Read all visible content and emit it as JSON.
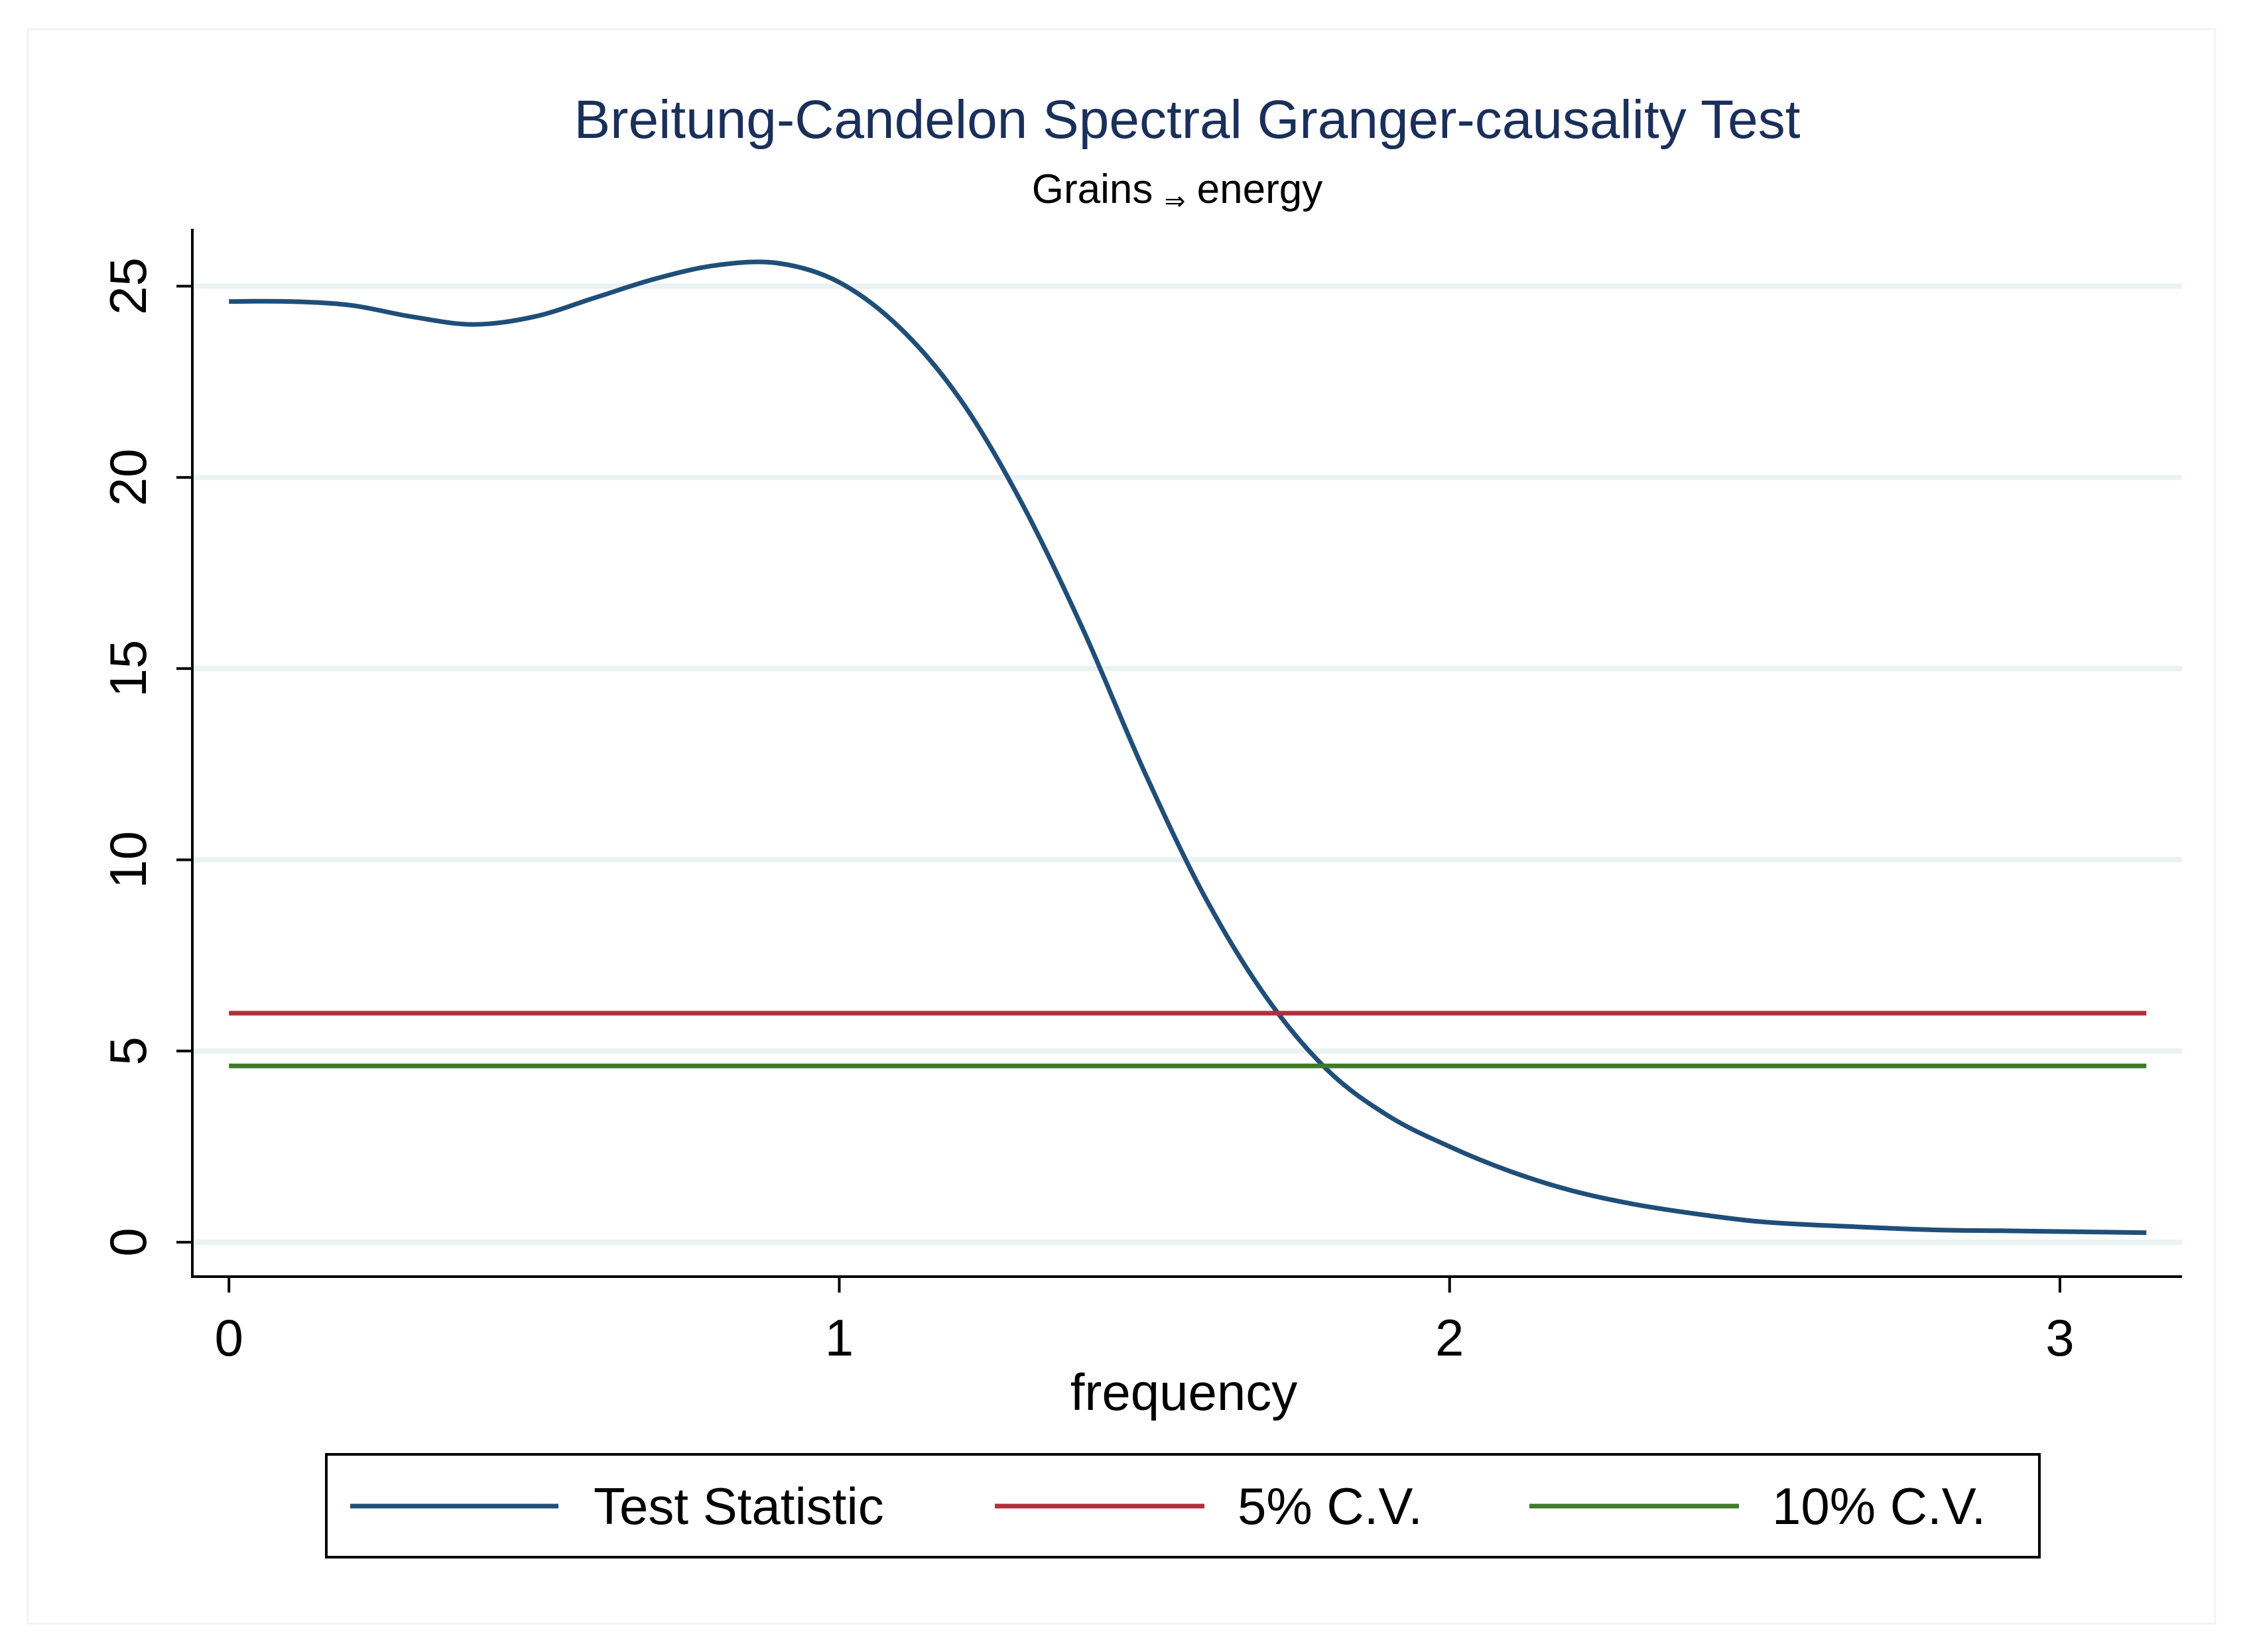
{
  "chart_data": {
    "type": "line",
    "title": "Breitung-Candelon Spectral Granger-causality Test",
    "subtitle_left": "Grains",
    "subtitle_arrow": "⇒",
    "subtitle_right": "energy",
    "xlabel": "frequency",
    "ylabel": "",
    "xlim": [
      -0.06,
      3.2
    ],
    "ylim": [
      -0.9,
      26.5
    ],
    "xticks": [
      0,
      1,
      2,
      3
    ],
    "xtick_labels": [
      "0",
      "1",
      "2",
      "3"
    ],
    "yticks": [
      0,
      5,
      10,
      15,
      20,
      25
    ],
    "ytick_labels": [
      "0",
      "5",
      "10",
      "15",
      "20",
      "25"
    ],
    "grid": true,
    "legend_position": "bottom",
    "colors": {
      "title": "#1a2f5a",
      "test_statistic": "#1f4e79",
      "cv5": "#b0303a",
      "cv10": "#3e7a2a",
      "grid": "#eaf2f3",
      "axis": "#000000"
    },
    "series": [
      {
        "name": "Test Statistic",
        "x": [
          0.0,
          0.1,
          0.2,
          0.3,
          0.4,
          0.5,
          0.6,
          0.7,
          0.8,
          0.9,
          1.0,
          1.1,
          1.2,
          1.3,
          1.4,
          1.5,
          1.6,
          1.7,
          1.8,
          1.9,
          2.0,
          2.1,
          2.2,
          2.3,
          2.4,
          2.5,
          2.6,
          2.7,
          2.8,
          2.9,
          3.0,
          3.1416
        ],
        "values": [
          24.6,
          24.6,
          24.5,
          24.2,
          24.0,
          24.2,
          24.7,
          25.2,
          25.55,
          25.6,
          25.1,
          23.9,
          22.0,
          19.3,
          16.0,
          12.3,
          9.0,
          6.4,
          4.5,
          3.3,
          2.5,
          1.85,
          1.35,
          1.0,
          0.75,
          0.55,
          0.45,
          0.38,
          0.32,
          0.3,
          0.28,
          0.25
        ]
      },
      {
        "name": "5% C.V.",
        "x": [
          0.0,
          3.1416
        ],
        "values": [
          5.99,
          5.99
        ]
      },
      {
        "name": "10% C.V.",
        "x": [
          0.0,
          3.1416
        ],
        "values": [
          4.61,
          4.61
        ]
      }
    ]
  }
}
